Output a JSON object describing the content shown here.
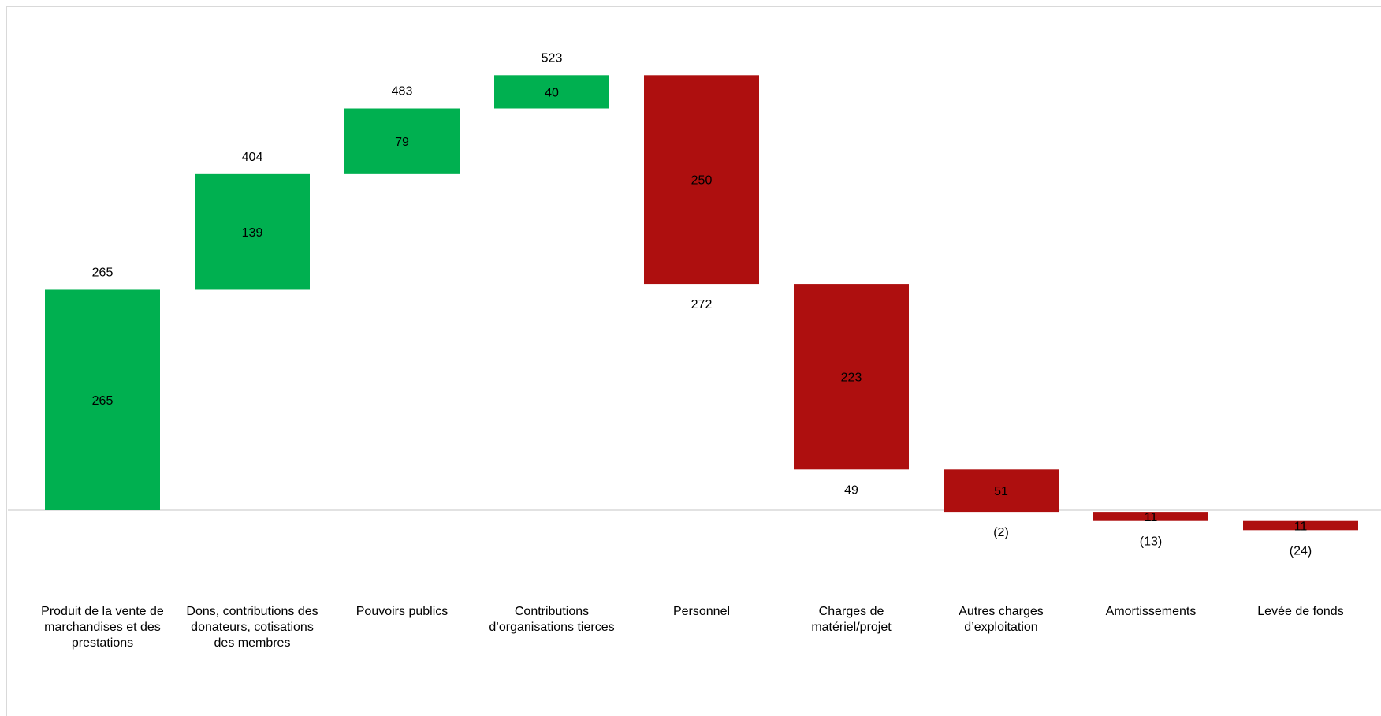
{
  "chart_data": {
    "type": "bar",
    "subtype": "waterfall",
    "title": "",
    "xlabel": "",
    "ylabel": "",
    "grid": false,
    "legend": "none",
    "categories": [
      "Produit de la vente de marchandises et des prestations",
      "Dons, contributions des donateurs, cotisations des membres",
      "Pouvoirs publics",
      "Contributions d’organisations tierces",
      "Personnel",
      "Charges de matériel/projet",
      "Autres charges d’exploitation",
      "Amortissements",
      "Levée de fonds"
    ],
    "values": [
      265,
      139,
      79,
      40,
      -250,
      -223,
      -51,
      -11,
      -11
    ],
    "value_labels": [
      "265",
      "139",
      "79",
      "40",
      "250",
      "223",
      "51",
      "11",
      "11"
    ],
    "cumulative": [
      265,
      404,
      483,
      523,
      272,
      49,
      -2,
      -13,
      -24
    ],
    "cumulative_labels": [
      "265",
      "404",
      "483",
      "523",
      "272",
      "49",
      "(2)",
      "(13)",
      "(24)"
    ],
    "colors": {
      "increase": "#00b050",
      "decrease": "#ae0f0f",
      "baseline": "#d9d9d9"
    }
  }
}
